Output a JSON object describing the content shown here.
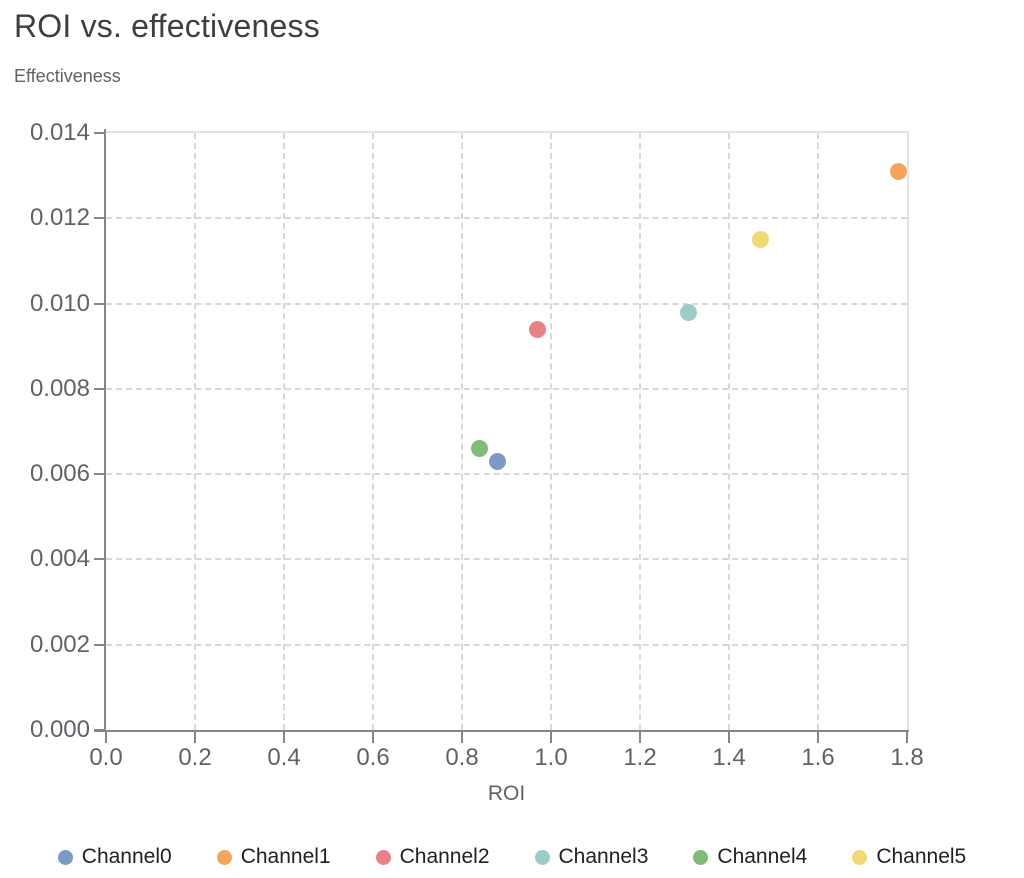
{
  "header": {
    "title": "ROI vs. effectiveness",
    "y_axis_label": "Effectiveness"
  },
  "chart_data": {
    "type": "scatter",
    "title": "ROI vs. effectiveness",
    "xlabel": "ROI",
    "ylabel": "Effectiveness",
    "xlim": [
      0,
      1.8
    ],
    "ylim": [
      0,
      0.014
    ],
    "x_tick_values": [
      0,
      0.2,
      0.4,
      0.6,
      0.8,
      1.0,
      1.2,
      1.4,
      1.6,
      1.8
    ],
    "x_tick_labels": [
      "0.0",
      "0.2",
      "0.4",
      "0.6",
      "0.8",
      "1.0",
      "1.2",
      "1.4",
      "1.6",
      "1.8"
    ],
    "y_tick_values": [
      0,
      0.002,
      0.004,
      0.006,
      0.008,
      0.01,
      0.012,
      0.014
    ],
    "y_tick_labels": [
      "0.000",
      "0.002",
      "0.004",
      "0.006",
      "0.008",
      "0.010",
      "0.012",
      "0.014"
    ],
    "grid": "dashed",
    "legend_position": "bottom",
    "series": [
      {
        "name": "Channel0",
        "color": "#7D9BC2",
        "x": 0.88,
        "y": 0.0063
      },
      {
        "name": "Channel1",
        "color": "#F5A55B",
        "x": 1.78,
        "y": 0.0131
      },
      {
        "name": "Channel2",
        "color": "#E98287",
        "x": 0.97,
        "y": 0.0094
      },
      {
        "name": "Channel3",
        "color": "#9BCCC6",
        "x": 1.31,
        "y": 0.0098
      },
      {
        "name": "Channel4",
        "color": "#81BB79",
        "x": 0.84,
        "y": 0.0066
      },
      {
        "name": "Channel5",
        "color": "#EFD972",
        "x": 1.47,
        "y": 0.0115
      }
    ]
  },
  "style": {
    "title_color": "#3c4043",
    "axis_label_color": "#5f6368",
    "tick_label_color": "#5f6368",
    "axis_line_color": "#868686",
    "grid_color": "#d8d8d8",
    "plot_border_color": "#e3e3e3",
    "legend_text_color": "#202124",
    "background": "#ffffff"
  }
}
